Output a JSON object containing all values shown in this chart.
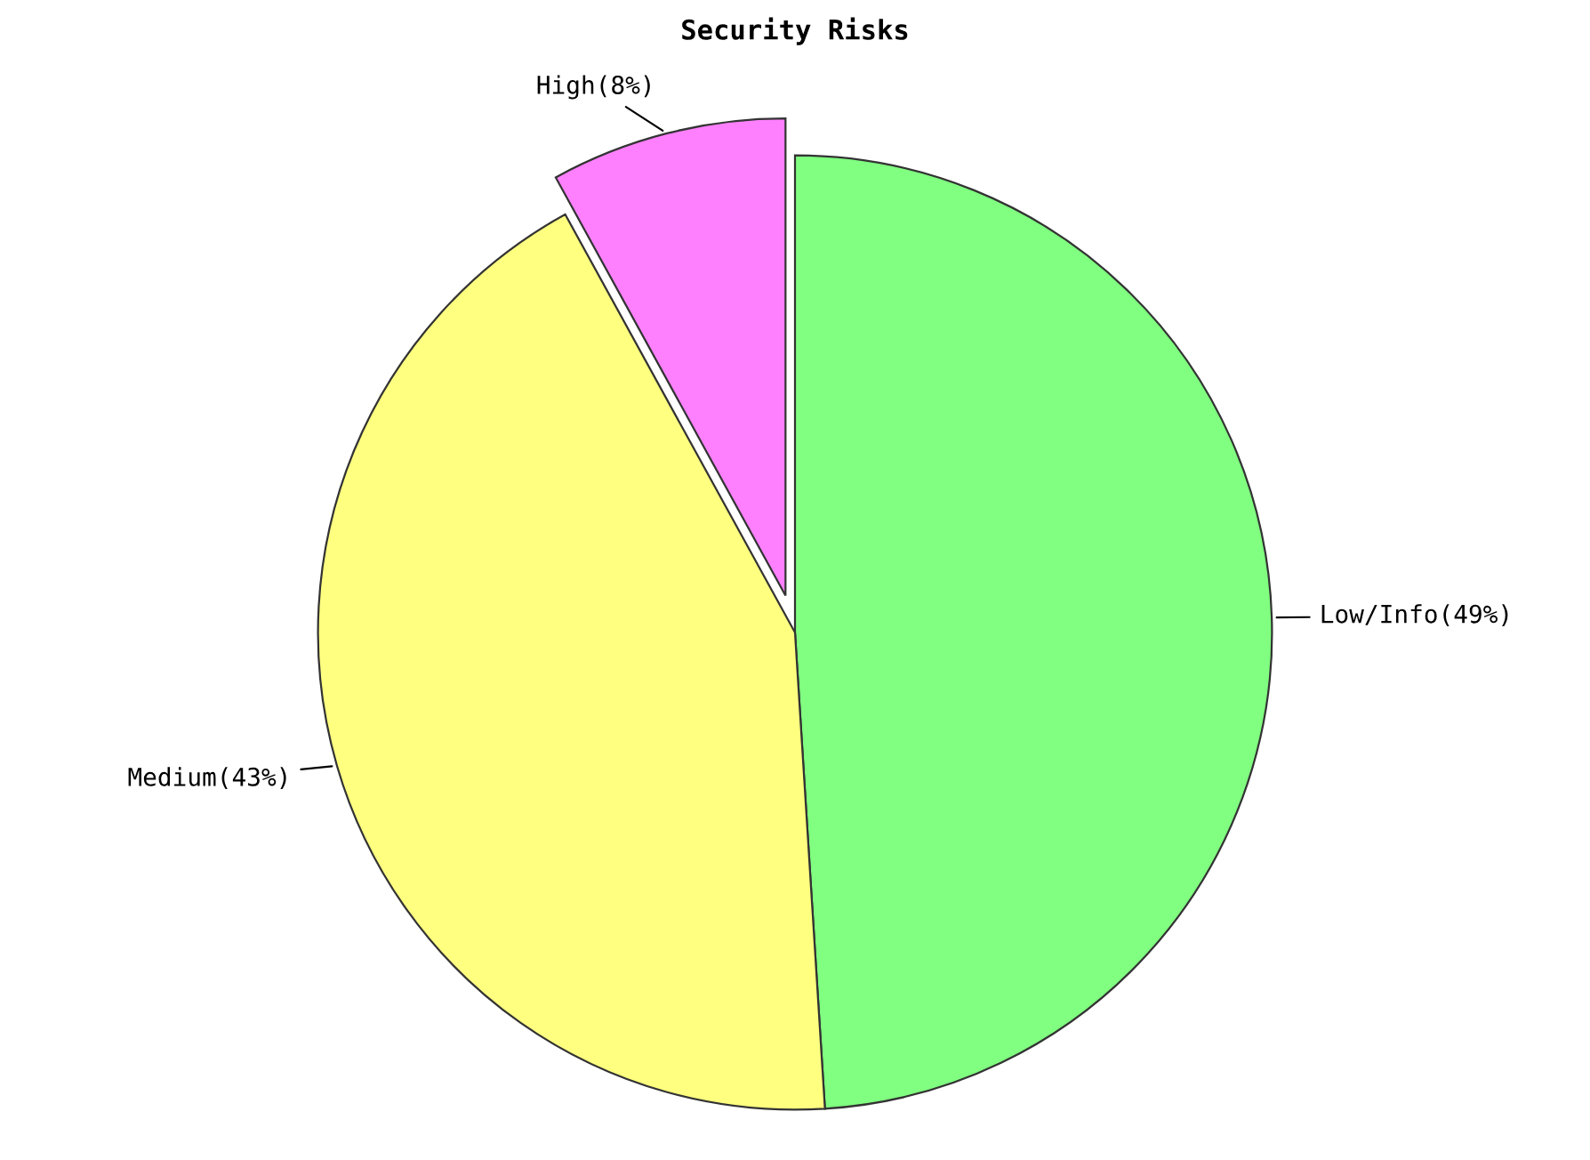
{
  "chart_data": {
    "type": "pie",
    "title": "Security Risks",
    "categories": [
      "Low/Info(49%)",
      "Medium(43%)",
      "High(8%)"
    ],
    "values": [
      49,
      43,
      8
    ],
    "colors": [
      "#80ff80",
      "#ffff80",
      "#ff80ff"
    ],
    "legend": false
  }
}
